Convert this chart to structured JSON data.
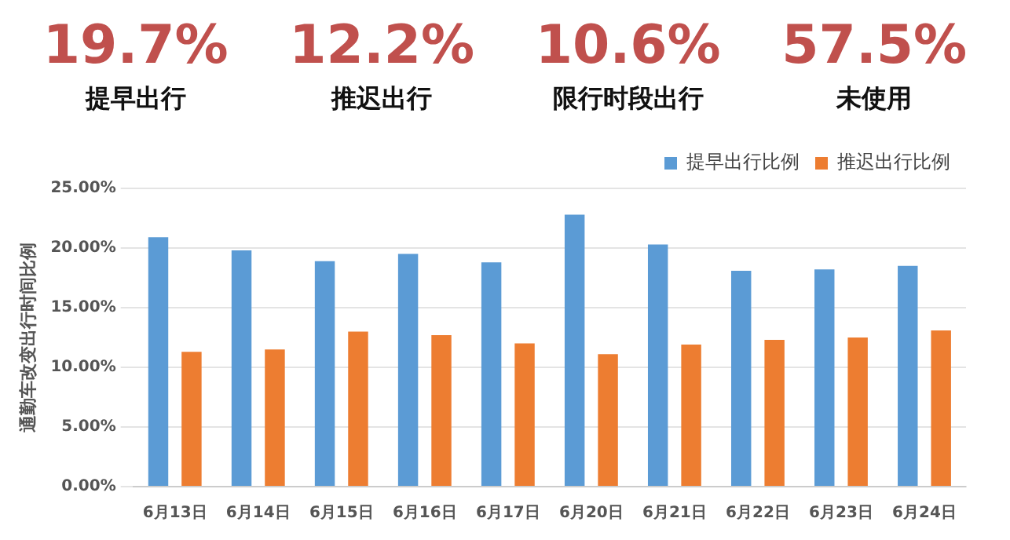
{
  "chart_data": {
    "type": "bar",
    "ylabel": "通勤车改变出行时间比例",
    "annotations": [
      "19.7%",
      "提早出行",
      "12.2%",
      "推迟出行",
      "10.6%",
      "限行时段出行",
      "57.5%",
      "未使用"
    ],
    "categories": [
      "6月13日",
      "6月14日",
      "6月15日",
      "6月16日",
      "6月17日",
      "6月20日",
      "6月21日",
      "6月22日",
      "6月23日",
      "6月24日"
    ],
    "series": [
      {
        "name": "提早出行比例",
        "color": "#5b9bd5",
        "values": [
          20.9,
          19.8,
          18.9,
          19.5,
          18.8,
          22.8,
          20.3,
          18.1,
          18.2,
          18.5
        ]
      },
      {
        "name": "推迟出行比例",
        "color": "#ed7d31",
        "values": [
          11.3,
          11.5,
          13.0,
          12.7,
          12.0,
          11.1,
          11.9,
          12.3,
          12.5,
          13.1
        ]
      }
    ],
    "ylim": [
      0,
      25
    ],
    "yticks": [
      {
        "value": 0,
        "label": "0.00%"
      },
      {
        "value": 5,
        "label": "5.00%"
      },
      {
        "value": 10,
        "label": "10.00%"
      },
      {
        "value": 15,
        "label": "15.00%"
      },
      {
        "value": 20,
        "label": "20.00%"
      },
      {
        "value": 25,
        "label": "25.00%"
      }
    ],
    "grid": "y",
    "legend": "top right"
  }
}
